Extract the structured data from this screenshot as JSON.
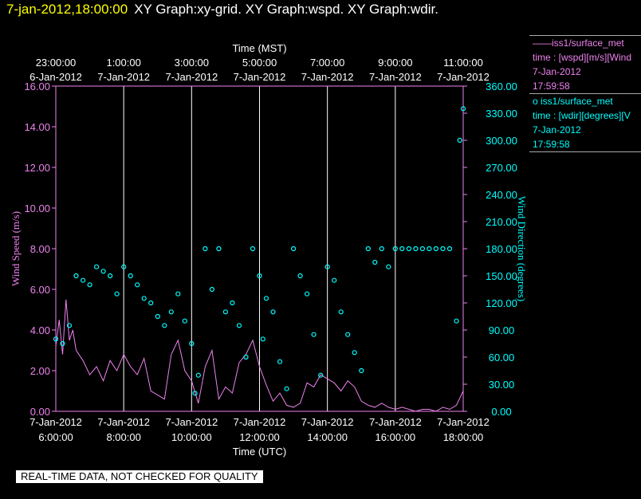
{
  "header": {
    "timestamp": "7-jan-2012,18:00:00",
    "titles": "XY Graph:xy-grid.  XY Graph:wspd.  XY Graph:wdir."
  },
  "legend": [
    {
      "line1": "——iss1/surface_met",
      "line2": "time : [wspd][m/s][Wind",
      "line3": "7-Jan-2012",
      "line4": "17:59:58",
      "color": "#ee82ee"
    },
    {
      "line1": "o  iss1/surface_met",
      "line2": "time : [wdir][degrees][V",
      "line3": "7-Jan-2012",
      "line4": "17:59:58",
      "color": "#00ffff"
    }
  ],
  "notice": "REAL-TIME DATA, NOT CHECKED FOR QUALITY",
  "chart_data": {
    "type": "line",
    "grid": "vertical",
    "colors": {
      "speed": "#ee82ee",
      "direction": "#00ffff",
      "grid": "#ffffff",
      "axis": "#ee82ee"
    },
    "top_axis": {
      "label": "Time (MST)",
      "ticks": [
        {
          "l1": "23:00:00",
          "l2": "6-Jan-2012"
        },
        {
          "l1": "1:00:00",
          "l2": "7-Jan-2012"
        },
        {
          "l1": "3:00:00",
          "l2": "7-Jan-2012"
        },
        {
          "l1": "5:00:00",
          "l2": "7-Jan-2012"
        },
        {
          "l1": "7:00:00",
          "l2": "7-Jan-2012"
        },
        {
          "l1": "9:00:00",
          "l2": "7-Jan-2012"
        },
        {
          "l1": "11:00:00",
          "l2": "7-Jan-2012"
        }
      ]
    },
    "bottom_axis": {
      "label": "Time (UTC)",
      "ticks": [
        {
          "l1": "7-Jan-2012",
          "l2": "6:00:00"
        },
        {
          "l1": "7-Jan-2012",
          "l2": "8:00:00"
        },
        {
          "l1": "7-Jan-2012",
          "l2": "10:00:00"
        },
        {
          "l1": "7-Jan-2012",
          "l2": "12:00:00"
        },
        {
          "l1": "7-Jan-2012",
          "l2": "14:00:00"
        },
        {
          "l1": "7-Jan-2012",
          "l2": "16:00:00"
        },
        {
          "l1": "7-Jan-2012",
          "l2": "18:00:00"
        }
      ]
    },
    "xlim_hours_utc": [
      6,
      18
    ],
    "left_axis": {
      "label": "Wind Speed (m/s)",
      "ylim": [
        0,
        16
      ],
      "ticks": [
        "0.00",
        "2.00",
        "4.00",
        "6.00",
        "8.00",
        "10.00",
        "12.00",
        "14.00",
        "16.00"
      ]
    },
    "right_axis": {
      "label": "Wind Direction (degrees)",
      "ylim": [
        0,
        360
      ],
      "ticks": [
        "0.00",
        "30.00",
        "60.00",
        "90.00",
        "120.00",
        "150.00",
        "180.00",
        "210.00",
        "240.00",
        "270.00",
        "300.00",
        "330.00",
        "360.00"
      ]
    },
    "series": [
      {
        "name": "iss1/surface_met wspd",
        "style": "line",
        "x": [
          6.0,
          6.1,
          6.2,
          6.3,
          6.4,
          6.5,
          6.6,
          6.8,
          7.0,
          7.2,
          7.4,
          7.6,
          7.8,
          8.0,
          8.2,
          8.4,
          8.6,
          8.8,
          9.0,
          9.2,
          9.4,
          9.6,
          9.8,
          10.0,
          10.2,
          10.4,
          10.6,
          10.8,
          11.0,
          11.2,
          11.4,
          11.6,
          11.8,
          12.0,
          12.2,
          12.4,
          12.6,
          12.8,
          13.0,
          13.2,
          13.4,
          13.6,
          13.8,
          14.0,
          14.2,
          14.4,
          14.6,
          14.8,
          15.0,
          15.2,
          15.4,
          15.6,
          15.8,
          16.0,
          16.2,
          16.4,
          16.6,
          16.8,
          17.0,
          17.2,
          17.4,
          17.6,
          17.8,
          18.0
        ],
        "values": [
          3.2,
          4.5,
          2.8,
          5.5,
          3.5,
          4.0,
          3.0,
          2.5,
          1.8,
          2.2,
          1.5,
          2.5,
          2.0,
          2.8,
          2.2,
          1.8,
          2.6,
          1.0,
          0.8,
          0.6,
          2.8,
          3.5,
          2.0,
          1.5,
          0.4,
          2.2,
          3.0,
          0.6,
          1.2,
          0.9,
          2.4,
          2.8,
          3.5,
          2.2,
          1.3,
          0.5,
          0.9,
          0.3,
          0.2,
          0.4,
          1.4,
          1.2,
          1.8,
          1.6,
          1.4,
          1.0,
          1.5,
          1.2,
          0.5,
          0.3,
          0.2,
          0.4,
          0.2,
          0.1,
          0.2,
          0.1,
          0.0,
          0.1,
          0.1,
          0.0,
          0.2,
          0.1,
          0.3,
          1.0
        ]
      },
      {
        "name": "iss1/surface_met wdir",
        "style": "markers",
        "x": [
          6.0,
          6.2,
          6.4,
          6.6,
          6.8,
          7.0,
          7.2,
          7.4,
          7.6,
          7.8,
          8.0,
          8.2,
          8.4,
          8.6,
          8.8,
          9.0,
          9.2,
          9.4,
          9.6,
          9.8,
          10.0,
          10.1,
          10.2,
          10.4,
          10.6,
          10.8,
          11.0,
          11.2,
          11.4,
          11.6,
          11.8,
          12.0,
          12.1,
          12.2,
          12.4,
          12.6,
          12.8,
          13.0,
          13.2,
          13.4,
          13.6,
          13.8,
          14.0,
          14.2,
          14.4,
          14.6,
          14.8,
          15.0,
          15.2,
          15.4,
          15.6,
          15.8,
          16.0,
          16.2,
          16.4,
          16.6,
          16.8,
          17.0,
          17.2,
          17.4,
          17.6,
          17.8,
          17.9,
          18.0
        ],
        "values": [
          80,
          75,
          95,
          150,
          145,
          140,
          160,
          155,
          150,
          130,
          160,
          150,
          140,
          125,
          120,
          105,
          95,
          110,
          130,
          100,
          75,
          20,
          40,
          180,
          135,
          180,
          110,
          120,
          95,
          60,
          180,
          150,
          80,
          125,
          110,
          55,
          25,
          180,
          150,
          130,
          85,
          40,
          160,
          145,
          110,
          85,
          65,
          45,
          180,
          165,
          180,
          160,
          180,
          180,
          180,
          180,
          180,
          180,
          180,
          180,
          180,
          100,
          300,
          335
        ]
      }
    ]
  }
}
